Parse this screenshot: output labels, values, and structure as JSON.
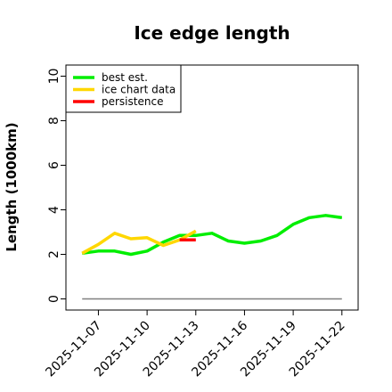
{
  "chart_data": {
    "type": "line",
    "title": "Ice edge length",
    "xlabel": "",
    "ylabel": "Length (1000km)",
    "ylim": [
      -0.5,
      10.5
    ],
    "yticks": [
      0,
      2,
      4,
      6,
      8,
      10
    ],
    "xlim": [
      "2025-11-05",
      "2025-11-23"
    ],
    "xticks": [
      "2025-11-07",
      "2025-11-10",
      "2025-11-13",
      "2025-11-16",
      "2025-11-19",
      "2025-11-22"
    ],
    "grid": false,
    "legend_position": "top-left",
    "baseline": {
      "color": "#808080",
      "x": [
        "2025-11-06",
        "2025-11-22"
      ],
      "y": 0
    },
    "series": [
      {
        "name": "best est.",
        "color": "#00ee00",
        "x": [
          "2025-11-06",
          "2025-11-07",
          "2025-11-08",
          "2025-11-09",
          "2025-11-10",
          "2025-11-11",
          "2025-11-12",
          "2025-11-13",
          "2025-11-14",
          "2025-11-15",
          "2025-11-16",
          "2025-11-17",
          "2025-11-18",
          "2025-11-19",
          "2025-11-20",
          "2025-11-21",
          "2025-11-22"
        ],
        "y": [
          2.05,
          2.15,
          2.15,
          2.0,
          2.15,
          2.55,
          2.85,
          2.85,
          2.95,
          2.6,
          2.5,
          2.6,
          2.85,
          3.35,
          3.65,
          3.75,
          3.65
        ]
      },
      {
        "name": "ice chart data",
        "color": "#ffd700",
        "x": [
          "2025-11-06",
          "2025-11-07",
          "2025-11-08",
          "2025-11-09",
          "2025-11-10",
          "2025-11-11",
          "2025-11-12",
          "2025-11-13"
        ],
        "y": [
          2.05,
          2.45,
          2.95,
          2.7,
          2.75,
          2.4,
          2.65,
          3.05
        ]
      },
      {
        "name": "persistence",
        "color": "#ff0000",
        "x": [
          "2025-11-12",
          "2025-11-13"
        ],
        "y": [
          2.65,
          2.65
        ]
      }
    ]
  }
}
